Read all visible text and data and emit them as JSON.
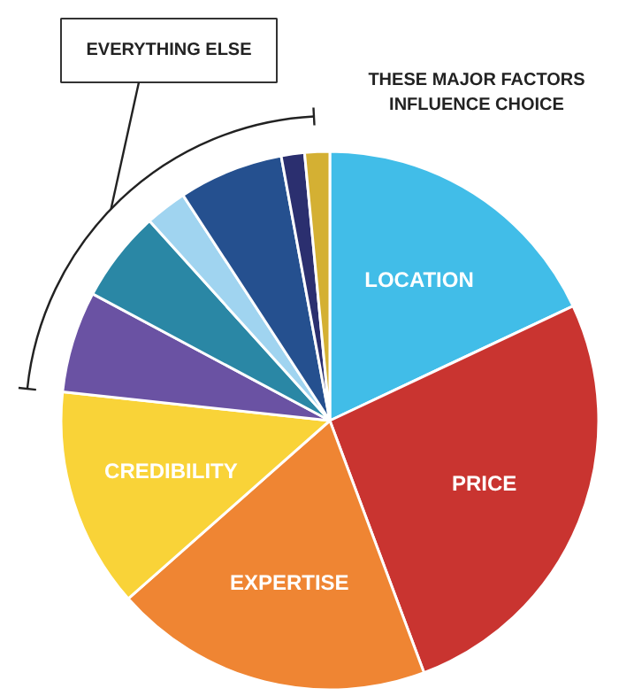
{
  "chart_data": {
    "type": "pie",
    "categories": [
      "LOCATION",
      "PRICE",
      "EXPERTISE",
      "CREDIBILITY",
      null,
      null,
      null,
      null,
      null,
      null
    ],
    "values": [
      18,
      26.3,
      19.2,
      13.2,
      6.1,
      5.5,
      2.5,
      6.3,
      1.4,
      1.5
    ],
    "colors": [
      "#41bde8",
      "#c93430",
      "#ef8533",
      "#f9d338",
      "#6a52a3",
      "#2a87a5",
      "#a0d4f0",
      "#25508f",
      "#2b2f6f",
      "#d4b033"
    ],
    "annotations": [
      "EVERYTHING ELSE",
      "THESE MAJOR FACTORS\nINFLUENCE CHOICE"
    ]
  }
}
